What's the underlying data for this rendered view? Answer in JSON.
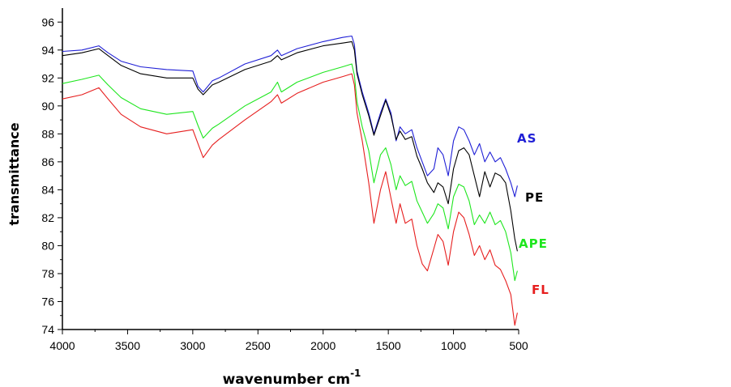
{
  "chart_data": {
    "type": "line",
    "title": "",
    "xlabel": "wavenumber cm",
    "xlabel_superscript": "-1",
    "ylabel": "transmittance",
    "xlim": [
      4000,
      500
    ],
    "ylim": [
      74,
      97
    ],
    "xticks": [
      4000,
      3500,
      3000,
      2500,
      2000,
      1500,
      1000,
      500
    ],
    "yticks": [
      74,
      76,
      78,
      80,
      82,
      84,
      86,
      88,
      90,
      92,
      94,
      96
    ],
    "grid": false,
    "legend": "inline labels at right end of each series",
    "series": [
      {
        "name": "AS",
        "color": "#1f1fd6",
        "x": [
          4000,
          3850,
          3720,
          3650,
          3550,
          3400,
          3200,
          3000,
          2960,
          2920,
          2850,
          2800,
          2600,
          2400,
          2350,
          2320,
          2200,
          2000,
          1850,
          1780,
          1760,
          1740,
          1700,
          1650,
          1610,
          1560,
          1520,
          1480,
          1440,
          1410,
          1370,
          1320,
          1280,
          1240,
          1200,
          1150,
          1120,
          1080,
          1040,
          1000,
          960,
          920,
          880,
          840,
          800,
          760,
          720,
          680,
          640,
          600,
          560,
          530,
          510
        ],
        "y": [
          93.9,
          94.0,
          94.3,
          93.8,
          93.2,
          92.8,
          92.6,
          92.5,
          91.4,
          91.0,
          91.8,
          92.0,
          93.0,
          93.6,
          94.0,
          93.6,
          94.1,
          94.6,
          94.9,
          95.0,
          94.4,
          92.5,
          91.0,
          89.5,
          88.0,
          89.5,
          90.5,
          89.5,
          87.5,
          88.5,
          88.0,
          88.3,
          87.0,
          86.0,
          85.0,
          85.5,
          87.0,
          86.5,
          85.0,
          87.5,
          88.5,
          88.3,
          87.5,
          86.5,
          87.3,
          86.0,
          86.7,
          86.0,
          86.3,
          85.5,
          84.5,
          83.5,
          84.3
        ]
      },
      {
        "name": "PE",
        "color": "#000000",
        "x": [
          4000,
          3850,
          3720,
          3650,
          3550,
          3400,
          3200,
          3000,
          2960,
          2920,
          2850,
          2800,
          2600,
          2400,
          2350,
          2320,
          2200,
          2000,
          1850,
          1780,
          1760,
          1740,
          1700,
          1650,
          1610,
          1560,
          1520,
          1480,
          1440,
          1410,
          1370,
          1320,
          1280,
          1240,
          1200,
          1150,
          1120,
          1080,
          1040,
          1000,
          960,
          920,
          880,
          840,
          800,
          760,
          720,
          680,
          640,
          600,
          560,
          530,
          510
        ],
        "y": [
          93.6,
          93.8,
          94.1,
          93.6,
          92.9,
          92.3,
          92.0,
          92.0,
          91.2,
          90.8,
          91.5,
          91.7,
          92.6,
          93.2,
          93.6,
          93.3,
          93.8,
          94.3,
          94.5,
          94.6,
          94.0,
          92.3,
          90.8,
          89.3,
          87.9,
          89.3,
          90.4,
          89.3,
          87.6,
          88.2,
          87.6,
          87.8,
          86.4,
          85.5,
          84.5,
          83.8,
          84.5,
          84.2,
          83.0,
          85.5,
          86.8,
          87.0,
          86.5,
          85.0,
          83.5,
          85.3,
          84.2,
          85.2,
          85.0,
          84.5,
          82.5,
          80.5,
          79.6
        ]
      },
      {
        "name": "APE",
        "color": "#1ee61e",
        "x": [
          4000,
          3850,
          3720,
          3650,
          3550,
          3400,
          3200,
          3000,
          2960,
          2920,
          2850,
          2800,
          2600,
          2400,
          2350,
          2320,
          2200,
          2000,
          1850,
          1780,
          1760,
          1740,
          1700,
          1650,
          1610,
          1560,
          1520,
          1480,
          1440,
          1410,
          1370,
          1320,
          1280,
          1240,
          1200,
          1150,
          1120,
          1080,
          1040,
          1000,
          960,
          920,
          880,
          840,
          800,
          760,
          720,
          680,
          640,
          600,
          560,
          530,
          510
        ],
        "y": [
          91.6,
          91.9,
          92.2,
          91.5,
          90.6,
          89.8,
          89.4,
          89.6,
          88.6,
          87.7,
          88.4,
          88.7,
          90.0,
          91.0,
          91.7,
          91.0,
          91.7,
          92.4,
          92.8,
          93.0,
          92.2,
          90.3,
          88.5,
          86.8,
          84.5,
          86.5,
          87.0,
          85.8,
          84.0,
          85.0,
          84.3,
          84.6,
          83.2,
          82.4,
          81.6,
          82.3,
          83.0,
          82.7,
          81.2,
          83.5,
          84.4,
          84.2,
          83.2,
          81.5,
          82.2,
          81.6,
          82.4,
          81.5,
          81.8,
          81.0,
          79.5,
          77.5,
          78.2
        ]
      },
      {
        "name": "FL",
        "color": "#e61e1e",
        "x": [
          4000,
          3850,
          3720,
          3650,
          3550,
          3400,
          3200,
          3000,
          2960,
          2920,
          2850,
          2800,
          2600,
          2400,
          2350,
          2320,
          2200,
          2000,
          1850,
          1780,
          1760,
          1740,
          1700,
          1650,
          1610,
          1560,
          1520,
          1480,
          1440,
          1410,
          1370,
          1320,
          1280,
          1240,
          1200,
          1150,
          1120,
          1080,
          1040,
          1000,
          960,
          920,
          880,
          840,
          800,
          760,
          720,
          680,
          640,
          600,
          560,
          530,
          510
        ],
        "y": [
          90.5,
          90.8,
          91.3,
          90.5,
          89.4,
          88.5,
          88.0,
          88.3,
          87.3,
          86.3,
          87.2,
          87.6,
          89.0,
          90.3,
          90.8,
          90.2,
          90.9,
          91.7,
          92.1,
          92.3,
          91.5,
          89.5,
          87.5,
          84.5,
          81.6,
          84.0,
          85.3,
          83.4,
          81.6,
          83.0,
          81.6,
          81.9,
          80.0,
          78.7,
          78.2,
          79.8,
          80.8,
          80.3,
          78.6,
          81.0,
          82.4,
          82.0,
          80.8,
          79.3,
          80.0,
          79.0,
          79.7,
          78.6,
          78.3,
          77.5,
          76.5,
          74.3,
          75.2
        ]
      }
    ]
  }
}
